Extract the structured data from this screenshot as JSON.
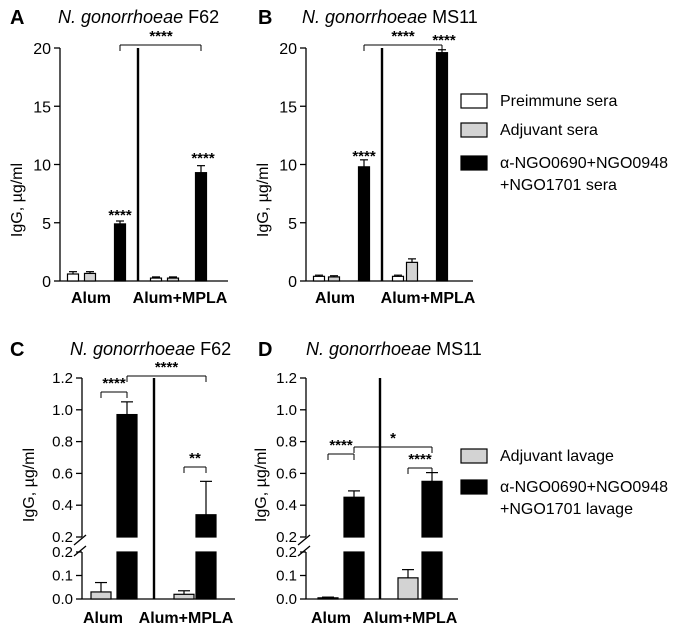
{
  "panels": [
    {
      "letter": "A",
      "species": "N. gonorrhoeae",
      "strain": "F62"
    },
    {
      "letter": "B",
      "species": "N. gonorrhoeae",
      "strain": "MS11"
    },
    {
      "letter": "C",
      "species": "N. gonorrhoeae",
      "strain": "F62"
    },
    {
      "letter": "D",
      "species": "N. gonorrhoeae",
      "strain": "MS11"
    }
  ],
  "legend_top": [
    {
      "label": "Preimmune sera",
      "color": "#ffffff"
    },
    {
      "label": "Adjuvant sera",
      "color": "#d3d3d3"
    },
    {
      "label": "α-NGO0690+NGO0948",
      "label2": "+NGO1701 sera",
      "color": "#000000"
    }
  ],
  "legend_bottom": [
    {
      "label": "Adjuvant lavage",
      "color": "#d3d3d3"
    },
    {
      "label": "α-NGO0690+NGO0948",
      "label2": "+NGO1701 lavage",
      "color": "#000000"
    }
  ],
  "chart_data": [
    {
      "panel": "A",
      "type": "bar",
      "title": "N. gonorrhoeae F62",
      "ylabel": "IgG, µg/ml",
      "ylim": [
        0,
        20
      ],
      "yticks": [
        "0",
        "5",
        "10",
        "15",
        "20"
      ],
      "categories": [
        "Alum",
        "Alum+MPLA"
      ],
      "series": [
        {
          "name": "Preimmune sera",
          "values": [
            0.6,
            0.25
          ],
          "errors": [
            0.2,
            0.1
          ]
        },
        {
          "name": "Adjuvant sera",
          "values": [
            0.65,
            0.25
          ],
          "errors": [
            0.15,
            0.1
          ]
        },
        {
          "name": "α-NGO0690+NGO0948+NGO1701 sera",
          "values": [
            4.9,
            9.3
          ],
          "errors": [
            0.25,
            0.6
          ]
        }
      ],
      "annotations": [
        "****",
        "****",
        "****"
      ]
    },
    {
      "panel": "B",
      "type": "bar",
      "title": "N. gonorrhoeae MS11",
      "ylabel": "IgG, µg/ml",
      "ylim": [
        0,
        20
      ],
      "yticks": [
        "0",
        "5",
        "10",
        "15",
        "20"
      ],
      "categories": [
        "Alum",
        "Alum+MPLA"
      ],
      "series": [
        {
          "name": "Preimmune sera",
          "values": [
            0.4,
            0.4
          ],
          "errors": [
            0.1,
            0.1
          ]
        },
        {
          "name": "Adjuvant sera",
          "values": [
            0.35,
            1.6
          ],
          "errors": [
            0.1,
            0.3
          ]
        },
        {
          "name": "α-NGO0690+NGO0948+NGO1701 sera",
          "values": [
            9.8,
            19.6
          ],
          "errors": [
            0.6,
            0.25
          ]
        }
      ],
      "annotations": [
        "****",
        "****",
        "****"
      ]
    },
    {
      "panel": "C",
      "type": "bar",
      "title": "N. gonorrhoeae F62",
      "ylabel": "IgG, µg/ml",
      "ylim": [
        0,
        1.2
      ],
      "y_axis_break": [
        0.2,
        0.2
      ],
      "yticks_lower": [
        "0.0",
        "0.1",
        "0.2"
      ],
      "yticks_upper": [
        "0.2",
        "0.4",
        "0.6",
        "0.8",
        "1.0",
        "1.2"
      ],
      "categories": [
        "Alum",
        "Alum+MPLA"
      ],
      "series": [
        {
          "name": "Adjuvant lavage",
          "values": [
            0.03,
            0.02
          ],
          "errors": [
            0.04,
            0.015
          ]
        },
        {
          "name": "α-NGO0690+NGO0948+NGO1701 lavage",
          "values": [
            0.97,
            0.34
          ],
          "errors": [
            0.08,
            0.21
          ]
        }
      ],
      "annotations": [
        "****",
        "****",
        "**"
      ]
    },
    {
      "panel": "D",
      "type": "bar",
      "title": "N. gonorrhoeae MS11",
      "ylabel": "IgG, µg/ml",
      "ylim": [
        0,
        1.2
      ],
      "y_axis_break": [
        0.2,
        0.2
      ],
      "yticks_lower": [
        "0.0",
        "0.1",
        "0.2"
      ],
      "yticks_upper": [
        "0.2",
        "0.4",
        "0.6",
        "0.8",
        "1.0",
        "1.2"
      ],
      "categories": [
        "Alum",
        "Alum+MPLA"
      ],
      "series": [
        {
          "name": "Adjuvant lavage",
          "values": [
            0.005,
            0.09
          ],
          "errors": [
            0.003,
            0.035
          ]
        },
        {
          "name": "α-NGO0690+NGO0948+NGO1701 lavage",
          "values": [
            0.45,
            0.55
          ],
          "errors": [
            0.04,
            0.055
          ]
        }
      ],
      "annotations": [
        "****",
        "*",
        "****"
      ]
    }
  ]
}
